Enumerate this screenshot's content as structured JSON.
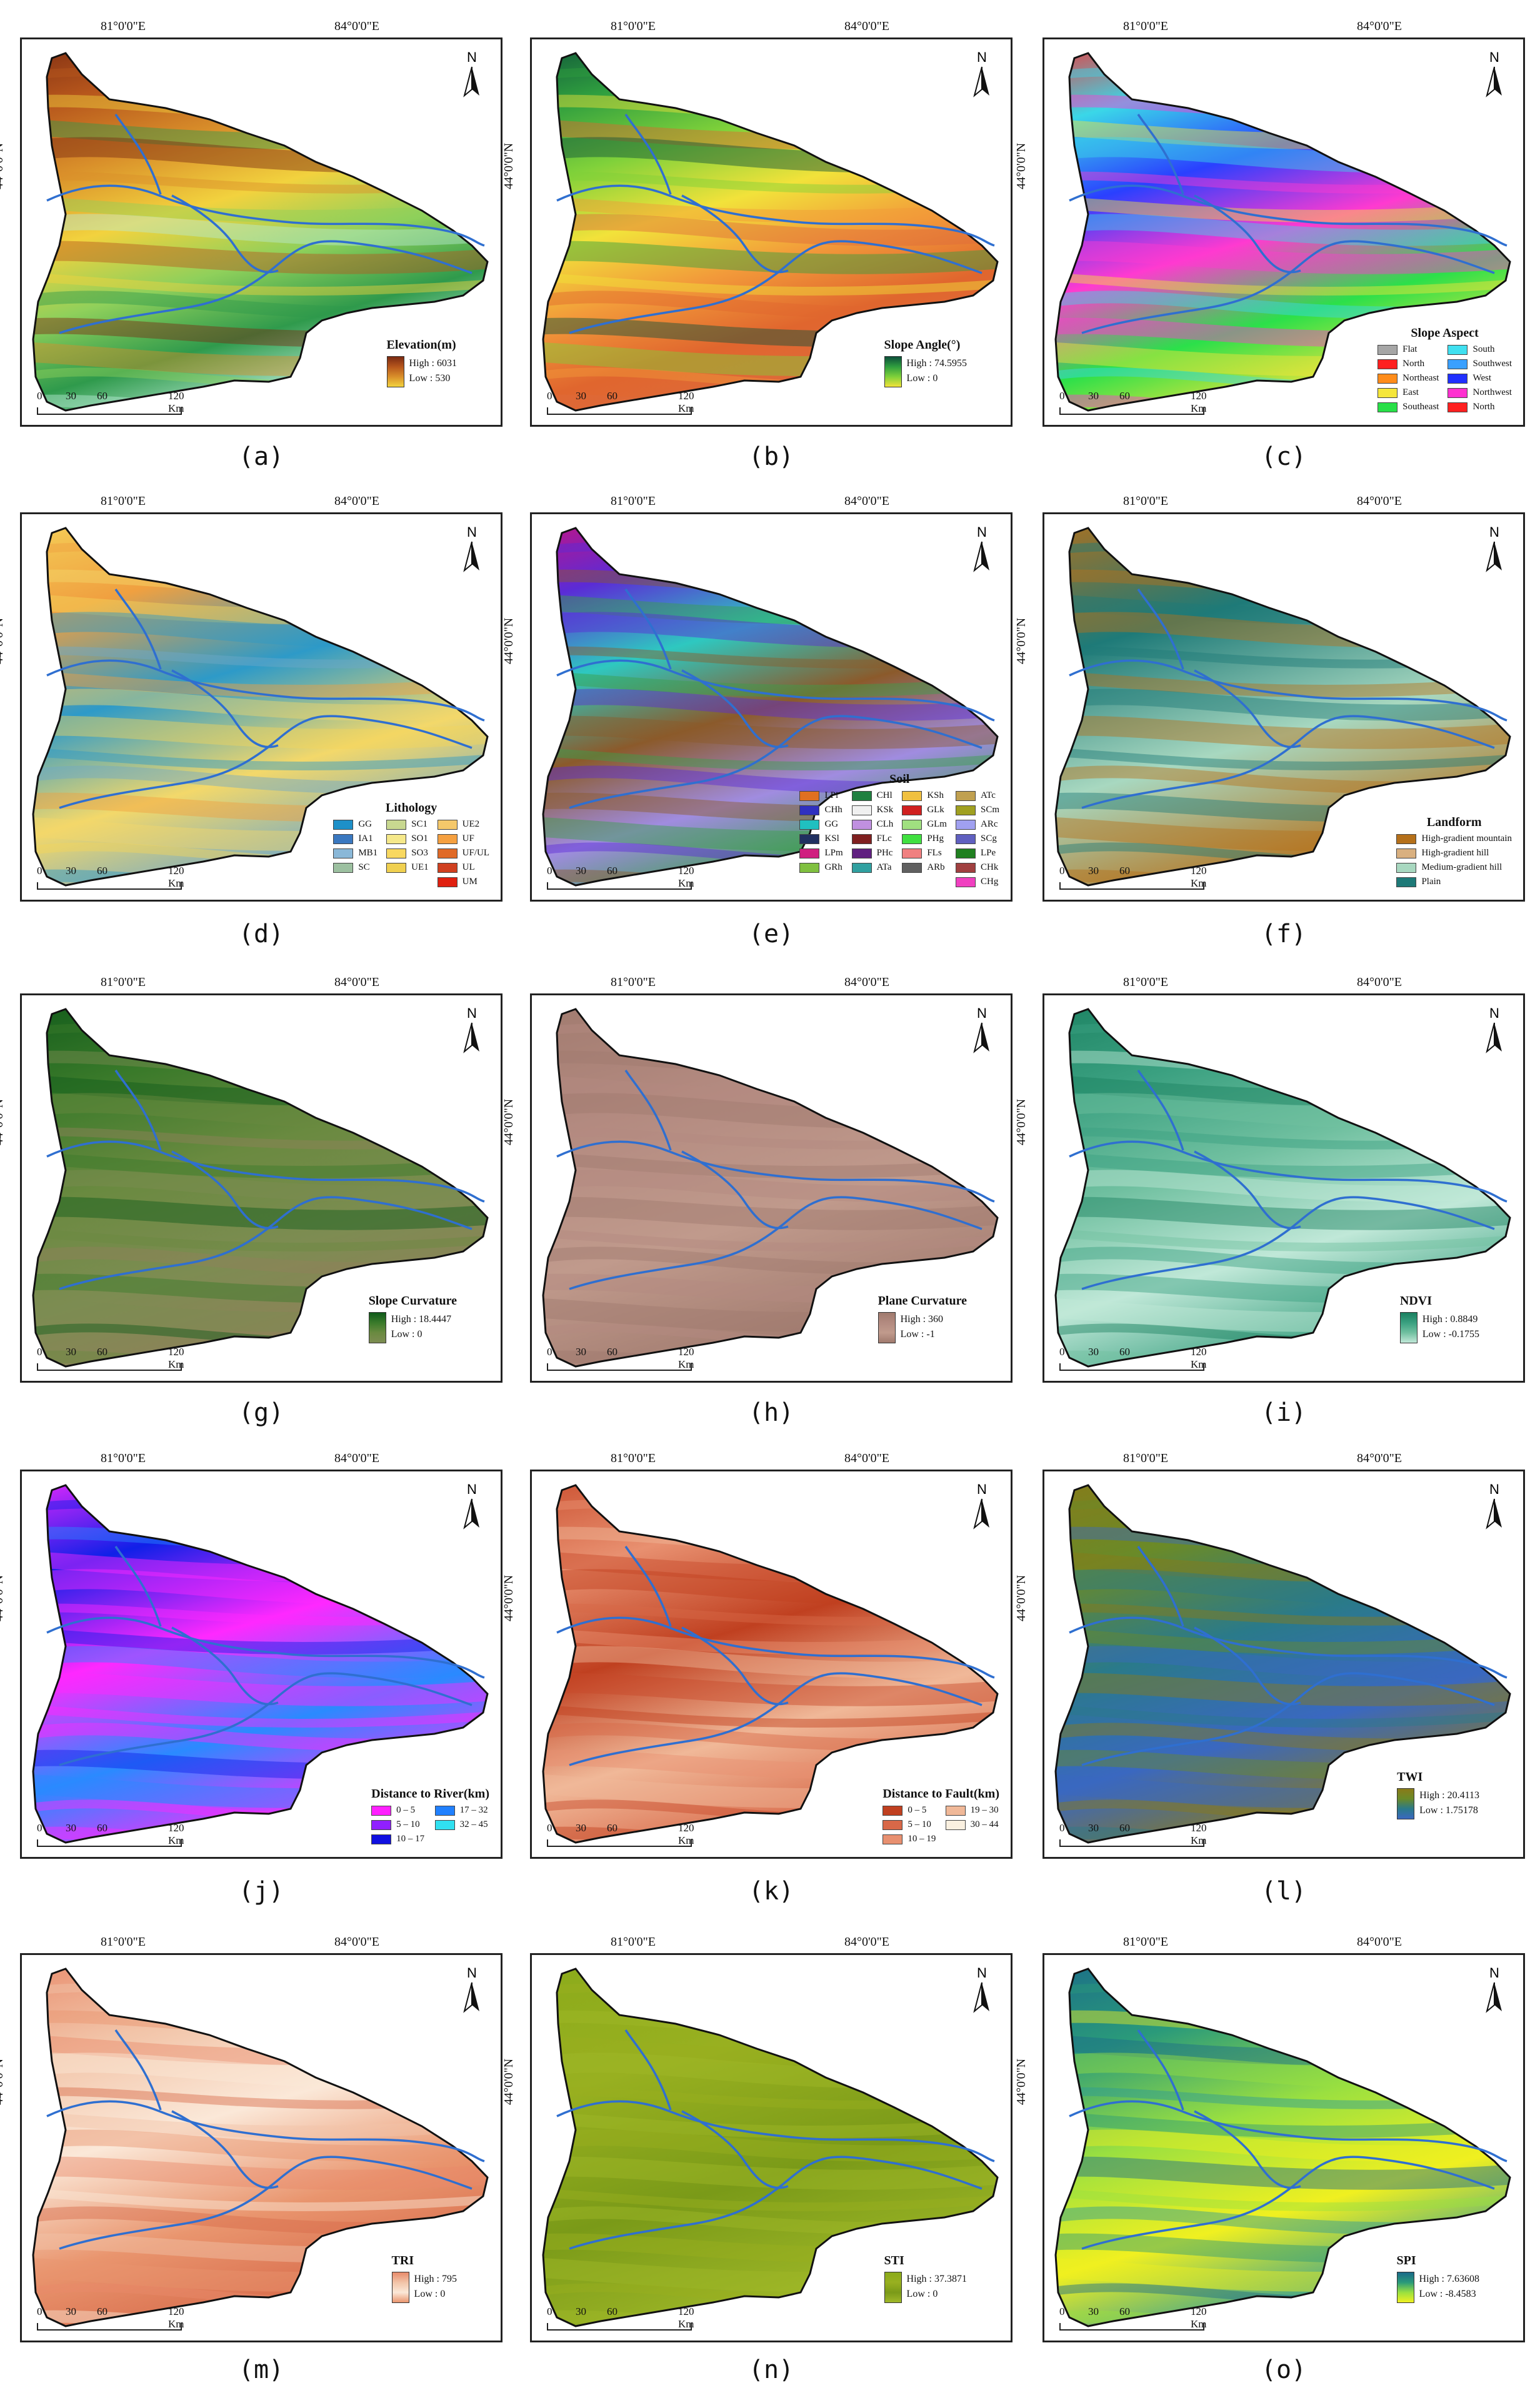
{
  "coords": {
    "lon1": "81°0'0\"E",
    "lon2": "84°0'0\"E",
    "lat": "44°0'0\"N",
    "north": "N",
    "scale": [
      "0",
      "30",
      "60",
      "120 Km"
    ]
  },
  "panels": [
    {
      "id": "a",
      "caption": "(a)",
      "title": "Elevation(m)",
      "type": "grad",
      "high": "High : 6031",
      "low": "Low : 530",
      "colors": [
        "#7a2a12",
        "#b6561c",
        "#d98f2a",
        "#f2d23e",
        "#8fd05b",
        "#2f9a4c",
        "#b9ebd4"
      ]
    },
    {
      "id": "b",
      "caption": "(b)",
      "title": "Slope Angle(°)",
      "type": "grad",
      "high": "High : 74.5955",
      "low": "Low : 0",
      "colors": [
        "#0d4f3a",
        "#2f9e3f",
        "#7fd13a",
        "#f2e23a",
        "#f29a3a",
        "#e0662e",
        "#de6b3c"
      ]
    },
    {
      "id": "c",
      "caption": "(c)",
      "title": "Slope Aspect",
      "type": "cat",
      "cols": 2,
      "items": [
        {
          "label": "Flat",
          "color": "#a6a6a6"
        },
        {
          "label": "South",
          "color": "#40e0f0"
        },
        {
          "label": "North",
          "color": "#ff2020"
        },
        {
          "label": "Southwest",
          "color": "#3aa0ff"
        },
        {
          "label": "Northeast",
          "color": "#ff8c1a"
        },
        {
          "label": "West",
          "color": "#2030ff"
        },
        {
          "label": "East",
          "color": "#f5e63a"
        },
        {
          "label": "Northwest",
          "color": "#ff30d0"
        },
        {
          "label": "Southeast",
          "color": "#28e048"
        },
        {
          "label": "North",
          "color": "#ff2020"
        }
      ],
      "colors": [
        "#ff2a2a",
        "#3ad7e8",
        "#2a40ff",
        "#ff3ad0",
        "#2be04a",
        "#f4e43a"
      ]
    },
    {
      "id": "d",
      "caption": "(d)",
      "title": "Lithology",
      "type": "cat",
      "cols": 3,
      "items": [
        {
          "label": "GG",
          "color": "#1e90c8"
        },
        {
          "label": "SC1",
          "color": "#c8d890"
        },
        {
          "label": "UE2",
          "color": "#f5c86a"
        },
        {
          "label": "IA1",
          "color": "#3a78c0"
        },
        {
          "label": "SO1",
          "color": "#f5e88a"
        },
        {
          "label": "UF",
          "color": "#f5a040"
        },
        {
          "label": "MB1",
          "color": "#8ab8d8"
        },
        {
          "label": "SO3",
          "color": "#f8d860"
        },
        {
          "label": "UF/UL",
          "color": "#e06a28"
        },
        {
          "label": "SC",
          "color": "#9cc0a0"
        },
        {
          "label": "UE1",
          "color": "#f0d050"
        },
        {
          "label": "UL",
          "color": "#d04020"
        },
        {
          "label": "",
          "color": ""
        },
        {
          "label": "",
          "color": ""
        },
        {
          "label": "UM",
          "color": "#e02010"
        }
      ],
      "colors": [
        "#f5d45a",
        "#f0a040",
        "#2d9ac8",
        "#f3d86a",
        "#6fa8c8"
      ]
    },
    {
      "id": "e",
      "caption": "(e)",
      "title": "Soil",
      "type": "cat",
      "cols": 4,
      "items": [
        {
          "label": "LPi",
          "color": "#e07020"
        },
        {
          "label": "CHl",
          "color": "#208040"
        },
        {
          "label": "KSh",
          "color": "#f0c040"
        },
        {
          "label": "ATc",
          "color": "#c0a050"
        },
        {
          "label": "CHh",
          "color": "#3030c0"
        },
        {
          "label": "KSk",
          "color": "#f0f0f0"
        },
        {
          "label": "GLk",
          "color": "#d02020"
        },
        {
          "label": "SCm",
          "color": "#a0a020"
        },
        {
          "label": "GG",
          "color": "#20c0c0"
        },
        {
          "label": "CLh",
          "color": "#c090e0"
        },
        {
          "label": "GLm",
          "color": "#a0e080"
        },
        {
          "label": "ARc",
          "color": "#a0a0f0"
        },
        {
          "label": "KSl",
          "color": "#203060"
        },
        {
          "label": "FLc",
          "color": "#802020"
        },
        {
          "label": "PHg",
          "color": "#40e040"
        },
        {
          "label": "SCg",
          "color": "#6060c0"
        },
        {
          "label": "LPm",
          "color": "#d02080"
        },
        {
          "label": "PHc",
          "color": "#602080"
        },
        {
          "label": "FLs",
          "color": "#f08080"
        },
        {
          "label": "LPe",
          "color": "#208020"
        },
        {
          "label": "GRh",
          "color": "#80c040"
        },
        {
          "label": "ATa",
          "color": "#30a0a0"
        },
        {
          "label": "ARb",
          "color": "#606060"
        },
        {
          "label": "CHk",
          "color": "#a04040"
        },
        {
          "label": "",
          "color": ""
        },
        {
          "label": "",
          "color": ""
        },
        {
          "label": "",
          "color": ""
        },
        {
          "label": "CHg",
          "color": "#f040c0"
        }
      ],
      "colors": [
        "#d0107a",
        "#5b2bd6",
        "#2ec8c0",
        "#8b5a2b",
        "#a08ce0",
        "#3aa04a"
      ]
    },
    {
      "id": "f",
      "caption": "(f)",
      "title": "Landform",
      "type": "cat",
      "cols": 1,
      "items": [
        {
          "label": "High-gradient mountain",
          "color": "#b5701a"
        },
        {
          "label": "High-gradient hill",
          "color": "#d9b080"
        },
        {
          "label": "Medium-gradient hill",
          "color": "#a8d8c0"
        },
        {
          "label": "Plain",
          "color": "#1e7a78"
        }
      ],
      "colors": [
        "#b5701a",
        "#1e7a78",
        "#a8d8c0",
        "#b5701a"
      ]
    },
    {
      "id": "g",
      "caption": "(g)",
      "title": "Slope Curvature",
      "type": "grad",
      "high": "High : 18.4447",
      "low": "Low : 0",
      "colors": [
        "#0f5a1a",
        "#3a7a2a",
        "#6a8a40",
        "#7d8c52",
        "#90805a"
      ]
    },
    {
      "id": "h",
      "caption": "(h)",
      "title": "Plane Curvature",
      "type": "grad",
      "high": "High : 360",
      "low": "Low : -1",
      "colors": [
        "#a07a6e",
        "#b38a80",
        "#c09a8c",
        "#a07a6e"
      ]
    },
    {
      "id": "i",
      "caption": "(i)",
      "title": "NDVI",
      "type": "grad",
      "high": "High : 0.8849",
      "low": "Low : -0.1755",
      "colors": [
        "#1a8060",
        "#3aa080",
        "#70c0a0",
        "#c0e8d8",
        "#3aa080"
      ]
    },
    {
      "id": "j",
      "caption": "(j)",
      "title": "Distance to River(km)",
      "type": "cat",
      "cols": 2,
      "items": [
        {
          "label": "0 – 5",
          "color": "#ff20ff"
        },
        {
          "label": "17 – 32",
          "color": "#2080ff"
        },
        {
          "label": "5 – 10",
          "color": "#9020ff"
        },
        {
          "label": "32 – 45",
          "color": "#30e0f0"
        },
        {
          "label": "10 – 17",
          "color": "#1010e0"
        }
      ],
      "colors": [
        "#ff28ff",
        "#1020e8",
        "#ff28ff",
        "#2a8aff",
        "#ff28ff"
      ]
    },
    {
      "id": "k",
      "caption": "(k)",
      "title": "Distance to Fault(km)",
      "type": "cat",
      "cols": 2,
      "items": [
        {
          "label": "0 – 5",
          "color": "#c04020"
        },
        {
          "label": "19 – 30",
          "color": "#f0b898"
        },
        {
          "label": "5 – 10",
          "color": "#d86848"
        },
        {
          "label": "30 – 44",
          "color": "#faf0e0"
        },
        {
          "label": "10 – 19",
          "color": "#e89070"
        }
      ],
      "colors": [
        "#c84a2a",
        "#e89070",
        "#c04020",
        "#f0b898",
        "#d86848"
      ]
    },
    {
      "id": "l",
      "caption": "(l)",
      "title": "TWI",
      "type": "grad",
      "high": "High : 20.4113",
      "low": "Low : 1.75178",
      "colors": [
        "#8a7a18",
        "#6a8a28",
        "#2a7a8a",
        "#3a68c0",
        "#8a7a18"
      ]
    },
    {
      "id": "m",
      "caption": "(m)",
      "title": "TRI",
      "type": "grad",
      "high": "High : 795",
      "low": "Low : 0",
      "colors": [
        "#e88a6a",
        "#f2c4a8",
        "#fbe8d8",
        "#e9956e",
        "#d76a4a"
      ]
    },
    {
      "id": "n",
      "caption": "(n)",
      "title": "STI",
      "type": "grad",
      "high": "High : 37.3871",
      "low": "Low : 0",
      "colors": [
        "#8aaa1a",
        "#98b020",
        "#7a9a18",
        "#a0b828"
      ]
    },
    {
      "id": "o",
      "caption": "(o)",
      "title": "SPI",
      "type": "grad",
      "high": "High : 7.63608",
      "low": "Low : -8.4583",
      "colors": [
        "#1a6a8a",
        "#2a9a7a",
        "#9ae040",
        "#f0f020",
        "#2a9a9a"
      ]
    }
  ]
}
